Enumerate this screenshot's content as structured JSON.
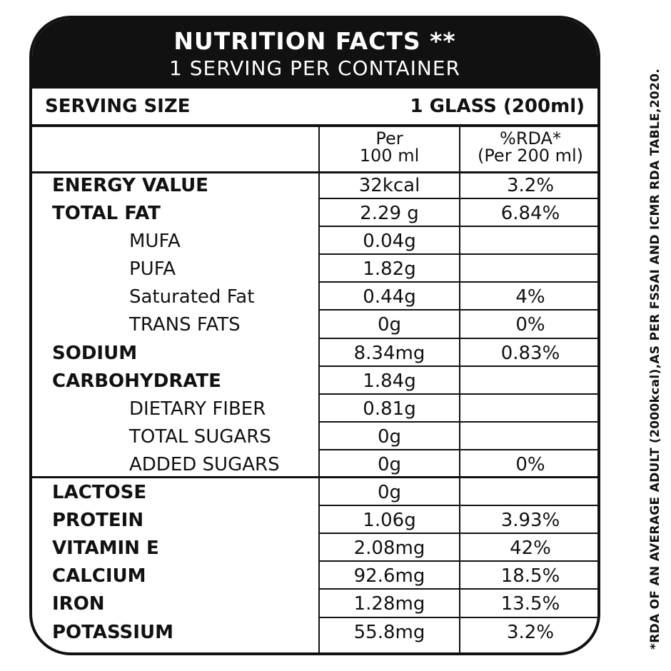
{
  "header": {
    "title": "NUTRITION FACTS **",
    "subtitle": "1 SERVING PER CONTAINER"
  },
  "serving": {
    "label": "SERVING SIZE",
    "value": "1 GLASS (200ml)"
  },
  "columns": {
    "per100_line1": "Per",
    "per100_line2": "100 ml",
    "rda_line1": "%RDA*",
    "rda_line2": "(Per 200 ml)"
  },
  "rows": [
    {
      "name": "ENERGY VALUE",
      "per100": "32kcal",
      "rda": "3.2%"
    },
    {
      "name": "TOTAL FAT",
      "per100": "2.29 g",
      "rda": "6.84%"
    },
    {
      "name": "MUFA",
      "per100": "0.04g",
      "rda": ""
    },
    {
      "name": "PUFA",
      "per100": "1.82g",
      "rda": ""
    },
    {
      "name": "Saturated Fat",
      "per100": "0.44g",
      "rda": "4%"
    },
    {
      "name": "TRANS FATS",
      "per100": "0g",
      "rda": "0%"
    },
    {
      "name": "SODIUM",
      "per100": "8.34mg",
      "rda": "0.83%"
    },
    {
      "name": "CARBOHYDRATE",
      "per100": "1.84g",
      "rda": ""
    },
    {
      "name": "DIETARY FIBER",
      "per100": "0.81g",
      "rda": ""
    },
    {
      "name": "TOTAL SUGARS",
      "per100": "0g",
      "rda": ""
    },
    {
      "name": "ADDED SUGARS",
      "per100": "0g",
      "rda": "0%"
    },
    {
      "name": "LACTOSE",
      "per100": "0g",
      "rda": ""
    },
    {
      "name": "PROTEIN",
      "per100": "1.06g",
      "rda": "3.93%"
    },
    {
      "name": "VITAMIN E",
      "per100": "2.08mg",
      "rda": "42%"
    },
    {
      "name": "CALCIUM",
      "per100": "92.6mg",
      "rda": "18.5%"
    },
    {
      "name": "IRON",
      "per100": "1.28mg",
      "rda": "13.5%"
    },
    {
      "name": "POTASSIUM",
      "per100": "55.8mg",
      "rda": "3.2%"
    }
  ],
  "footnote": "*RDA OF AN AVERAGE ADULT (2000kcal),AS PER FSSAI AND ICMR RDA TABLE,2020.",
  "colors": {
    "header_bg": "#111111",
    "text": "#111111",
    "background": "#ffffff"
  }
}
